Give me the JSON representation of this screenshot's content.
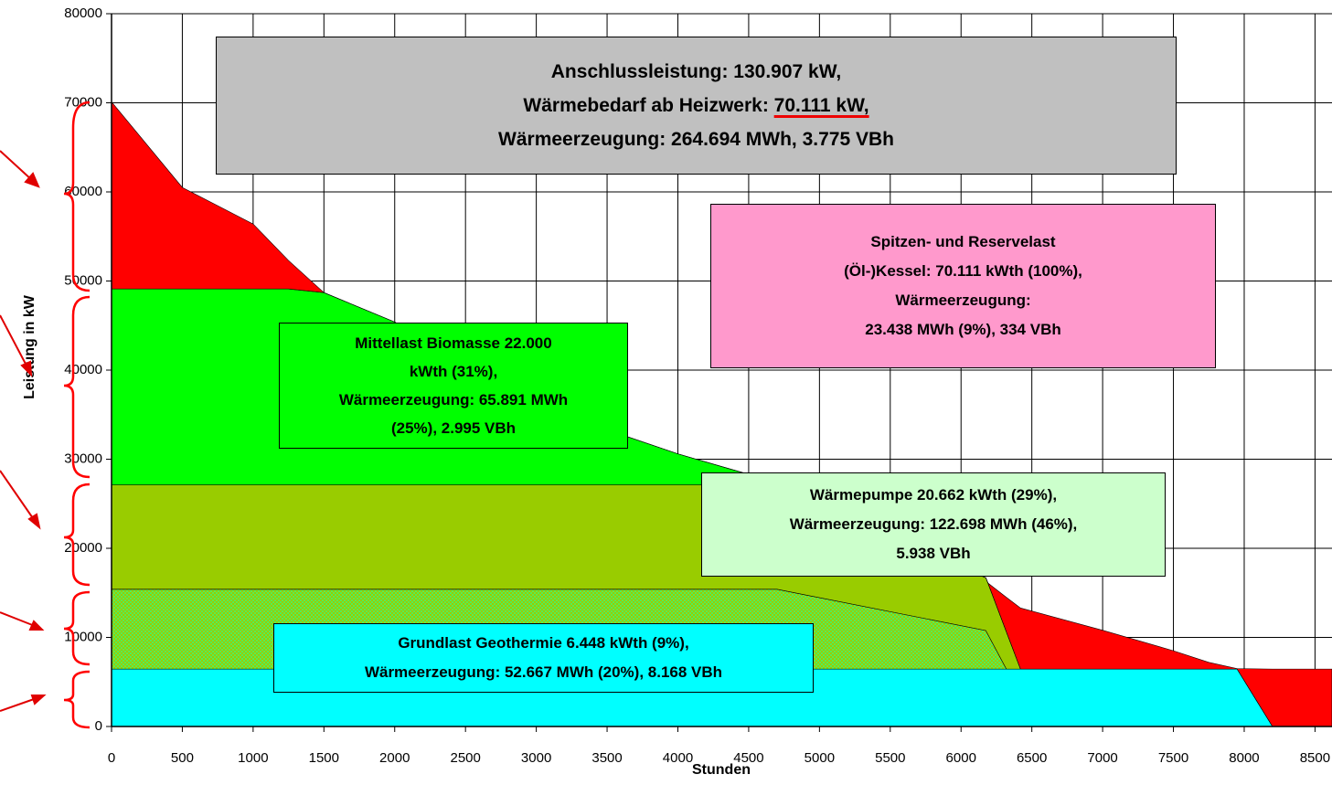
{
  "chart_data": {
    "type": "stacked_area",
    "x_label": "Stunden",
    "y_label": "Leistung in kW",
    "x": [
      0,
      500,
      1000,
      1250,
      1500,
      2000,
      3000,
      3500,
      4000,
      4500,
      4600,
      4700,
      6175,
      6190,
      6320,
      6420,
      7000,
      7500,
      7750,
      7950,
      8200,
      8620
    ],
    "series": [
      {
        "color": "#00ffff",
        "values": [
          6448,
          6448,
          6448,
          6448,
          6448,
          6448,
          6448,
          6448,
          6448,
          6448,
          6448,
          6448,
          6448,
          6448,
          6448,
          6448,
          6448,
          6448,
          6448,
          6448,
          0,
          0
        ]
      },
      {
        "color": "#55ee55",
        "pattern": "checker",
        "values": [
          8952,
          8952,
          8952,
          8952,
          8952,
          8952,
          8952,
          8952,
          8952,
          8952,
          8952,
          8952,
          4322,
          3875,
          0,
          0,
          0,
          0,
          0,
          0,
          0,
          0
        ]
      },
      {
        "color": "#99cc00",
        "values": [
          11710,
          11710,
          11710,
          11710,
          11710,
          11710,
          11710,
          11710,
          11710,
          11710,
          11710,
          11000,
          5930,
          5777,
          4196,
          0,
          0,
          0,
          0,
          0,
          0,
          0
        ]
      },
      {
        "color": "#00ff00",
        "values": [
          22000,
          22000,
          22000,
          22000,
          21590,
          18290,
          9390,
          6190,
          3490,
          1190,
          0,
          0,
          0,
          0,
          0,
          0,
          0,
          0,
          0,
          0,
          0,
          0
        ]
      },
      {
        "color": "#ff0000",
        "values": [
          21001,
          11390,
          7290,
          3190,
          0,
          0,
          0,
          0,
          0,
          0,
          0,
          0,
          0,
          0,
          3856,
          6852,
          4352,
          2052,
          752,
          52,
          6448,
          6448
        ]
      }
    ],
    "xlim": [
      0,
      8620
    ],
    "ylim": [
      0,
      80000
    ],
    "xticks": [
      0,
      500,
      1000,
      1500,
      2000,
      2500,
      3000,
      3500,
      4000,
      4500,
      5000,
      5500,
      6000,
      6500,
      7000,
      7500,
      8000,
      8500
    ],
    "yticks": [
      0,
      10000,
      20000,
      30000,
      40000,
      50000,
      60000,
      70000,
      80000
    ],
    "grid": true,
    "annotations": [
      {
        "lines": [
          "Anschlussleistung: 130.907 kW,",
          "Wärmebedarf ab Heizwerk:",
          "70.111 kW,",
          "Wärmeerzeugung: 264.694 MWh, 3.775 VBh"
        ]
      },
      {
        "lines": [
          "Spitzen- und Reservelast",
          "(Öl-)Kessel: 70.111 kWth (100%),",
          "Wärmeerzeugung:",
          "23.438 MWh (9%), 334 VBh"
        ]
      },
      {
        "lines": [
          "Mittellast Biomasse 22.000",
          "kWth (31%),",
          "Wärmeerzeugung: 65.891 MWh",
          "(25%), 2.995 VBh"
        ]
      },
      {
        "lines": [
          "Wärmepumpe 20.662 kWth (29%),",
          "Wärmeerzeugung: 122.698 MWh (46%),",
          "5.938 VBh"
        ]
      },
      {
        "lines": [
          "Grundlast Geothermie 6.448 kWth (9%),",
          "Wärmeerzeugung: 52.667 MWh (20%), 8.168 VBh"
        ]
      }
    ]
  }
}
